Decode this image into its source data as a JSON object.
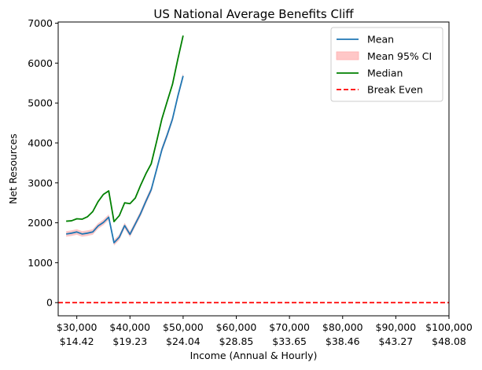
{
  "chart_data": {
    "type": "line",
    "title": "US  National Average Benefits Cliff",
    "xlabel": "Income (Annual & Hourly)",
    "ylabel": "Net Resources",
    "xlim": [
      26500,
      100000
    ],
    "ylim": [
      -330,
      7030
    ],
    "xticks": [
      {
        "value": 30000,
        "annual": "$30,000",
        "hourly": "$14.42"
      },
      {
        "value": 40000,
        "annual": "$40,000",
        "hourly": "$19.23"
      },
      {
        "value": 50000,
        "annual": "$50,000",
        "hourly": "$24.04"
      },
      {
        "value": 60000,
        "annual": "$60,000",
        "hourly": "$28.85"
      },
      {
        "value": 70000,
        "annual": "$70,000",
        "hourly": "$33.65"
      },
      {
        "value": 80000,
        "annual": "$80,000",
        "hourly": "$38.46"
      },
      {
        "value": 90000,
        "annual": "$90,000",
        "hourly": "$43.27"
      },
      {
        "value": 100000,
        "annual": "$100,000",
        "hourly": "$48.08"
      }
    ],
    "yticks": [
      0,
      1000,
      2000,
      3000,
      4000,
      5000,
      6000,
      7000
    ],
    "x": [
      28000,
      29000,
      30000,
      31000,
      32000,
      33000,
      34000,
      35000,
      36000,
      37000,
      38000,
      39000,
      40000,
      41000,
      42000,
      43000,
      44000,
      45000,
      46000,
      47000,
      48000,
      49000,
      50000
    ],
    "series": [
      {
        "name": "Mean",
        "kind": "line",
        "color": "#1f77b4",
        "values": [
          1720,
          1740,
          1770,
          1720,
          1740,
          1770,
          1920,
          2010,
          2140,
          1500,
          1640,
          1930,
          1710,
          1970,
          2230,
          2540,
          2830,
          3330,
          3830,
          4200,
          4600,
          5170,
          5680
        ]
      },
      {
        "name": "Mean 95% CI",
        "kind": "band",
        "color": "#ffc7c7",
        "band_halfwidth": 70
      },
      {
        "name": "Median",
        "kind": "line",
        "color": "#008000",
        "values": [
          2040,
          2050,
          2100,
          2090,
          2150,
          2280,
          2530,
          2710,
          2800,
          2030,
          2180,
          2500,
          2480,
          2620,
          2940,
          3230,
          3480,
          4030,
          4600,
          5040,
          5470,
          6100,
          6690
        ]
      },
      {
        "name": "Break Even",
        "kind": "hline",
        "color": "#ff0000",
        "y": 0
      }
    ],
    "legend_position": "top-right",
    "grid": false
  }
}
